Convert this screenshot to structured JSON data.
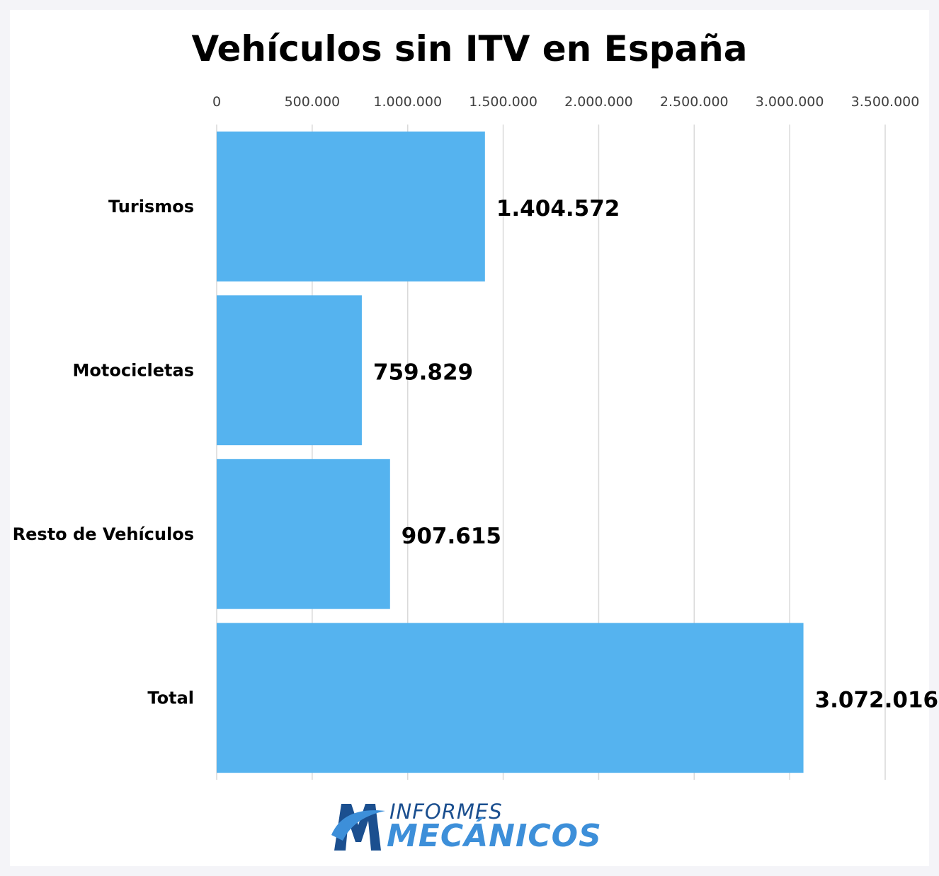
{
  "chart_data": {
    "type": "bar",
    "orientation": "horizontal",
    "title": "Vehículos sin ITV en España",
    "categories": [
      "Turismos",
      "Motocicletas",
      "Resto de Vehículos",
      "Total"
    ],
    "values": [
      1404572,
      759829,
      907615,
      3072016
    ],
    "value_labels": [
      "1.404.572",
      "759.829",
      "907.615",
      "3.072.016"
    ],
    "xlim": [
      0,
      3500000
    ],
    "ticks": [
      0,
      500000,
      1000000,
      1500000,
      2000000,
      2500000,
      3000000,
      3500000
    ],
    "tick_labels": [
      "0",
      "500.000",
      "1.000.000",
      "1.500.000",
      "2.000.000",
      "2.500.000",
      "3.000.000",
      "3.500.000"
    ],
    "axis_position": "top",
    "grid": true,
    "bar_color": "#55b3ef"
  },
  "logo": {
    "line1": "INFORMES",
    "line2": "MECÁNICOS"
  }
}
